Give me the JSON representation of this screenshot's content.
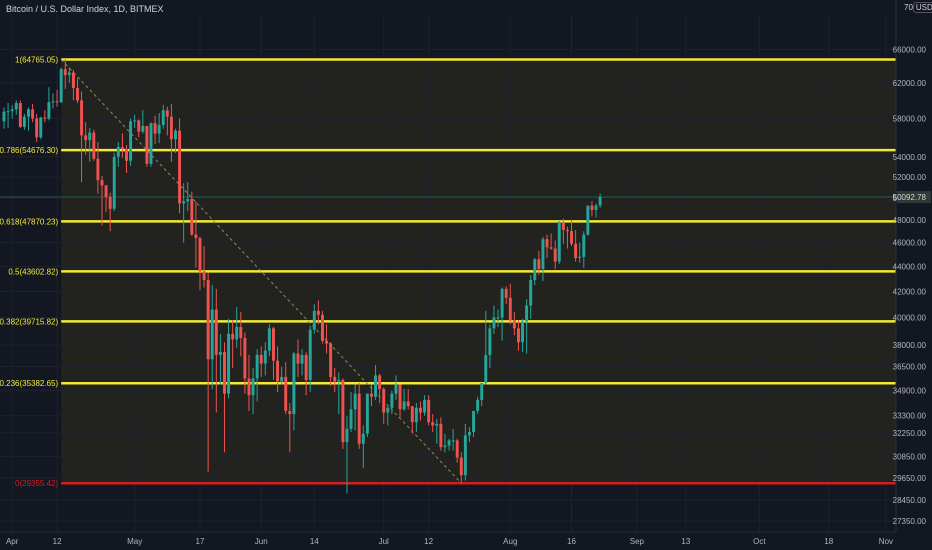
{
  "header": {
    "symbol_title": "Bitcoin / U.S. Dollar Index, 1D, BITMEX",
    "top_tick": "70",
    "currency": "USD"
  },
  "colors": {
    "background": "#131722",
    "zone": "#22231f",
    "fib_line": "#f3ea35",
    "zero_line": "#d21f1f",
    "up_candle": "#26a69a",
    "down_candle": "#ef5350",
    "trend_line": "#8a8d5a",
    "axis_text": "#b2b5be"
  },
  "chart_data": {
    "type": "candlestick",
    "title": "Bitcoin / U.S. Dollar Index, 1D, BITMEX",
    "scale": "log",
    "ylim": [
      26800,
      70500
    ],
    "xlim": [
      "2021-03-30",
      "2021-11-02"
    ],
    "y_ticks": [
      66000,
      62000,
      58000,
      54000,
      52000,
      50000,
      48000,
      46000,
      44000,
      42000,
      40000,
      38000,
      36500,
      34900,
      33300,
      32250,
      30850,
      29650,
      28450,
      27350
    ],
    "x_ticks": [
      {
        "date": "2021-04-01",
        "label": "Apr"
      },
      {
        "date": "2021-04-12",
        "label": "12"
      },
      {
        "date": "2021-05-01",
        "label": "May"
      },
      {
        "date": "2021-05-17",
        "label": "17"
      },
      {
        "date": "2021-06-01",
        "label": "Jun"
      },
      {
        "date": "2021-06-14",
        "label": "14"
      },
      {
        "date": "2021-07-01",
        "label": "Jul"
      },
      {
        "date": "2021-07-12",
        "label": "12"
      },
      {
        "date": "2021-08-01",
        "label": "Aug"
      },
      {
        "date": "2021-08-16",
        "label": "16"
      },
      {
        "date": "2021-09-01",
        "label": "Sep"
      },
      {
        "date": "2021-09-13",
        "label": "13"
      },
      {
        "date": "2021-10-01",
        "label": "Oct"
      },
      {
        "date": "2021-10-18",
        "label": "18"
      },
      {
        "date": "2021-11-01",
        "label": "Nov"
      }
    ],
    "fib_levels": [
      {
        "label": "1(64765.05)",
        "value": 64765.05,
        "color": "#f3ea35"
      },
      {
        "label": "0.786(54676.30)",
        "value": 54676.3,
        "color": "#f3ea35"
      },
      {
        "label": "0.618(47870.23)",
        "value": 47870.23,
        "color": "#f3ea35"
      },
      {
        "label": "0.5(43602.82)",
        "value": 43602.82,
        "color": "#f3ea35"
      },
      {
        "label": "0.382(39715.82)",
        "value": 39715.82,
        "color": "#f3ea35"
      },
      {
        "label": "0.236(35382.65)",
        "value": 35382.65,
        "color": "#f3ea35"
      },
      {
        "label": "0(29355.42)",
        "value": 29355.42,
        "color": "#d21f1f"
      }
    ],
    "fib_start_date": "2021-04-13",
    "fib_end_date": "2021-07-20",
    "current_price": 50092.78,
    "current_price_label": "50092.78",
    "candles": [
      [
        "2021-03-30",
        57700,
        59200,
        56900,
        58750
      ],
      [
        "2021-03-31",
        58750,
        59700,
        57000,
        58800
      ],
      [
        "2021-04-01",
        58800,
        59500,
        58000,
        59000
      ],
      [
        "2021-04-02",
        59000,
        60000,
        58400,
        59700
      ],
      [
        "2021-04-03",
        59700,
        60000,
        57000,
        57100
      ],
      [
        "2021-04-04",
        57100,
        58500,
        56800,
        58200
      ],
      [
        "2021-04-05",
        58200,
        59200,
        56700,
        59000
      ],
      [
        "2021-04-06",
        59000,
        59600,
        57600,
        58000
      ],
      [
        "2021-04-07",
        58000,
        58500,
        55500,
        56000
      ],
      [
        "2021-04-08",
        56000,
        58200,
        55800,
        58100
      ],
      [
        "2021-04-09",
        58100,
        58900,
        57600,
        58000
      ],
      [
        "2021-04-10",
        58000,
        61500,
        57800,
        59800
      ],
      [
        "2021-04-11",
        59800,
        60800,
        59100,
        59900
      ],
      [
        "2021-04-12",
        59900,
        61200,
        59300,
        59800
      ],
      [
        "2021-04-13",
        59800,
        63800,
        59700,
        63600
      ],
      [
        "2021-04-14",
        63600,
        64800,
        61300,
        62900
      ],
      [
        "2021-04-15",
        62900,
        63800,
        62000,
        63200
      ],
      [
        "2021-04-16",
        63200,
        63500,
        60000,
        61400
      ],
      [
        "2021-04-17",
        61400,
        62500,
        59700,
        60000
      ],
      [
        "2021-04-18",
        60000,
        61000,
        51500,
        56200
      ],
      [
        "2021-04-19",
        56200,
        57600,
        54200,
        55700
      ],
      [
        "2021-04-20",
        55700,
        57000,
        53500,
        56500
      ],
      [
        "2021-04-21",
        56500,
        56800,
        53600,
        53800
      ],
      [
        "2021-04-22",
        53800,
        55500,
        50400,
        51700
      ],
      [
        "2021-04-23",
        51700,
        52100,
        47500,
        51200
      ],
      [
        "2021-04-24",
        51200,
        51200,
        48700,
        50100
      ],
      [
        "2021-04-25",
        50100,
        50500,
        47000,
        49000
      ],
      [
        "2021-04-26",
        49000,
        54400,
        48800,
        54000
      ],
      [
        "2021-04-27",
        54000,
        55500,
        53000,
        55000
      ],
      [
        "2021-04-28",
        55000,
        56400,
        53900,
        54800
      ],
      [
        "2021-04-29",
        54800,
        55200,
        52400,
        53600
      ],
      [
        "2021-04-30",
        53600,
        58000,
        53100,
        57700
      ],
      [
        "2021-05-01",
        57700,
        58400,
        57000,
        57800
      ],
      [
        "2021-05-02",
        57800,
        57900,
        56000,
        56600
      ],
      [
        "2021-05-03",
        56600,
        58900,
        56400,
        57200
      ],
      [
        "2021-05-04",
        57200,
        57200,
        53000,
        53300
      ],
      [
        "2021-05-05",
        53300,
        57600,
        53000,
        57500
      ],
      [
        "2021-05-06",
        57500,
        58300,
        55300,
        56400
      ],
      [
        "2021-05-07",
        56400,
        58600,
        55400,
        57300
      ],
      [
        "2021-05-08",
        57300,
        59500,
        56900,
        58900
      ],
      [
        "2021-05-09",
        58900,
        59300,
        56200,
        58200
      ],
      [
        "2021-05-10",
        58200,
        59600,
        53500,
        55800
      ],
      [
        "2021-05-11",
        55800,
        56900,
        54400,
        56700
      ],
      [
        "2021-05-12",
        56700,
        58000,
        48600,
        49500
      ],
      [
        "2021-05-13",
        49500,
        51400,
        46000,
        49700
      ],
      [
        "2021-05-14",
        49700,
        51500,
        48800,
        49900
      ],
      [
        "2021-05-15",
        49900,
        50600,
        46600,
        46700
      ],
      [
        "2021-05-16",
        46700,
        49700,
        43900,
        46400
      ],
      [
        "2021-05-17",
        46400,
        46500,
        42100,
        43600
      ],
      [
        "2021-05-18",
        43600,
        45700,
        42300,
        42900
      ],
      [
        "2021-05-19",
        42900,
        43500,
        30000,
        37000
      ],
      [
        "2021-05-20",
        37000,
        42500,
        35000,
        40600
      ],
      [
        "2021-05-21",
        40600,
        42200,
        33500,
        37300
      ],
      [
        "2021-05-22",
        37300,
        38800,
        35300,
        37500
      ],
      [
        "2021-05-23",
        37500,
        38200,
        31100,
        34700
      ],
      [
        "2021-05-24",
        34700,
        39900,
        34400,
        38800
      ],
      [
        "2021-05-25",
        38800,
        39800,
        36400,
        38400
      ],
      [
        "2021-05-26",
        38400,
        40800,
        37800,
        39300
      ],
      [
        "2021-05-27",
        39300,
        40400,
        37200,
        38500
      ],
      [
        "2021-05-28",
        38500,
        38900,
        34700,
        35700
      ],
      [
        "2021-05-29",
        35700,
        37300,
        33600,
        34600
      ],
      [
        "2021-05-30",
        34600,
        36400,
        33400,
        35700
      ],
      [
        "2021-05-31",
        35700,
        37700,
        34200,
        37300
      ],
      [
        "2021-06-01",
        37300,
        37900,
        35800,
        36700
      ],
      [
        "2021-06-02",
        36700,
        38200,
        35900,
        37600
      ],
      [
        "2021-06-03",
        37600,
        39500,
        37200,
        39200
      ],
      [
        "2021-06-04",
        39200,
        39300,
        35600,
        36900
      ],
      [
        "2021-06-05",
        36900,
        37900,
        34800,
        35500
      ],
      [
        "2021-06-06",
        35500,
        36500,
        35300,
        35800
      ],
      [
        "2021-06-07",
        35800,
        36800,
        33400,
        33600
      ],
      [
        "2021-06-08",
        33600,
        34100,
        31100,
        33400
      ],
      [
        "2021-06-09",
        33400,
        37500,
        32400,
        37400
      ],
      [
        "2021-06-10",
        37400,
        38400,
        35800,
        36700
      ],
      [
        "2021-06-11",
        36700,
        37700,
        35900,
        37300
      ],
      [
        "2021-06-12",
        37300,
        37500,
        34600,
        35600
      ],
      [
        "2021-06-13",
        35600,
        39400,
        34800,
        39100
      ],
      [
        "2021-06-14",
        39100,
        41000,
        38800,
        40500
      ],
      [
        "2021-06-15",
        40500,
        41300,
        39500,
        40200
      ],
      [
        "2021-06-16",
        40200,
        40500,
        38100,
        38300
      ],
      [
        "2021-06-17",
        38300,
        39500,
        37400,
        38100
      ],
      [
        "2021-06-18",
        38100,
        38200,
        35200,
        35800
      ],
      [
        "2021-06-19",
        35800,
        36400,
        34800,
        35500
      ],
      [
        "2021-06-20",
        35500,
        36100,
        33400,
        35600
      ],
      [
        "2021-06-21",
        35600,
        35700,
        31300,
        31700
      ],
      [
        "2021-06-22",
        31700,
        33300,
        28800,
        32500
      ],
      [
        "2021-06-23",
        32500,
        34800,
        32300,
        33700
      ],
      [
        "2021-06-24",
        33700,
        35300,
        32400,
        34700
      ],
      [
        "2021-06-25",
        34700,
        35400,
        31300,
        31600
      ],
      [
        "2021-06-26",
        31600,
        32700,
        30200,
        32200
      ],
      [
        "2021-06-27",
        32200,
        34700,
        32000,
        34700
      ],
      [
        "2021-06-28",
        34700,
        35300,
        33900,
        34500
      ],
      [
        "2021-06-29",
        34500,
        36600,
        34300,
        35900
      ],
      [
        "2021-06-30",
        35900,
        36000,
        34100,
        35000
      ],
      [
        "2021-07-01",
        35000,
        35100,
        32800,
        33500
      ],
      [
        "2021-07-02",
        33500,
        33900,
        32700,
        33800
      ],
      [
        "2021-07-03",
        33800,
        34900,
        33400,
        34700
      ],
      [
        "2021-07-04",
        34700,
        35900,
        34300,
        35300
      ],
      [
        "2021-07-05",
        35300,
        35300,
        33200,
        33700
      ],
      [
        "2021-07-06",
        33700,
        35000,
        33600,
        34200
      ],
      [
        "2021-07-07",
        34200,
        35000,
        33700,
        33900
      ],
      [
        "2021-07-08",
        33900,
        33900,
        32200,
        32900
      ],
      [
        "2021-07-09",
        32900,
        34100,
        32300,
        33800
      ],
      [
        "2021-07-10",
        33800,
        34200,
        33000,
        33500
      ],
      [
        "2021-07-11",
        33500,
        34600,
        33300,
        34300
      ],
      [
        "2021-07-12",
        34300,
        34600,
        32700,
        32900
      ],
      [
        "2021-07-13",
        32900,
        33400,
        32300,
        32700
      ],
      [
        "2021-07-14",
        32700,
        33100,
        31600,
        32800
      ],
      [
        "2021-07-15",
        32800,
        33200,
        31200,
        31400
      ],
      [
        "2021-07-16",
        31400,
        32200,
        31100,
        31500
      ],
      [
        "2021-07-17",
        31500,
        31900,
        31200,
        31800
      ],
      [
        "2021-07-18",
        31800,
        32500,
        31200,
        31800
      ],
      [
        "2021-07-19",
        31800,
        31900,
        30500,
        30800
      ],
      [
        "2021-07-20",
        30800,
        31100,
        29400,
        29800
      ],
      [
        "2021-07-21",
        29800,
        32800,
        29500,
        32100
      ],
      [
        "2021-07-22",
        32100,
        32600,
        31700,
        32300
      ],
      [
        "2021-07-23",
        32300,
        33600,
        32000,
        33600
      ],
      [
        "2021-07-24",
        33600,
        34500,
        33400,
        34300
      ],
      [
        "2021-07-25",
        34300,
        35400,
        33900,
        35400
      ],
      [
        "2021-07-26",
        35400,
        40500,
        35300,
        37300
      ],
      [
        "2021-07-27",
        37300,
        39500,
        36400,
        39200
      ],
      [
        "2021-07-28",
        39200,
        40900,
        38800,
        40000
      ],
      [
        "2021-07-29",
        40000,
        40600,
        39300,
        40000
      ],
      [
        "2021-07-30",
        40000,
        42300,
        38300,
        42200
      ],
      [
        "2021-07-31",
        42200,
        42400,
        41000,
        41500
      ],
      [
        "2021-08-01",
        41500,
        42600,
        39500,
        39800
      ],
      [
        "2021-08-02",
        39800,
        40400,
        38700,
        39200
      ],
      [
        "2021-08-03",
        39200,
        39800,
        37600,
        38200
      ],
      [
        "2021-08-04",
        38200,
        39900,
        37500,
        39700
      ],
      [
        "2021-08-05",
        39700,
        41400,
        37400,
        40900
      ],
      [
        "2021-08-06",
        40900,
        43300,
        39900,
        42900
      ],
      [
        "2021-08-07",
        42900,
        44700,
        42500,
        44600
      ],
      [
        "2021-08-08",
        44600,
        45300,
        43300,
        43800
      ],
      [
        "2021-08-09",
        43800,
        46500,
        42800,
        46300
      ],
      [
        "2021-08-10",
        46300,
        46700,
        44700,
        45600
      ],
      [
        "2021-08-11",
        45600,
        46800,
        45400,
        45500
      ],
      [
        "2021-08-12",
        45500,
        46200,
        43800,
        44400
      ],
      [
        "2021-08-13",
        44400,
        47900,
        44200,
        47800
      ],
      [
        "2021-08-14",
        47800,
        48100,
        45900,
        47100
      ],
      [
        "2021-08-15",
        47100,
        47400,
        45500,
        47000
      ],
      [
        "2021-08-16",
        47000,
        48000,
        45700,
        45900
      ],
      [
        "2021-08-17",
        45900,
        47100,
        44400,
        44700
      ],
      [
        "2021-08-18",
        44700,
        46000,
        44300,
        44800
      ],
      [
        "2021-08-19",
        44800,
        47000,
        43900,
        46700
      ],
      [
        "2021-08-20",
        46700,
        49300,
        46600,
        49300
      ],
      [
        "2021-08-21",
        49300,
        49700,
        48300,
        48900
      ],
      [
        "2021-08-22",
        48900,
        49500,
        48200,
        49300
      ],
      [
        "2021-08-23",
        49300,
        50400,
        49100,
        50092.78
      ]
    ]
  }
}
